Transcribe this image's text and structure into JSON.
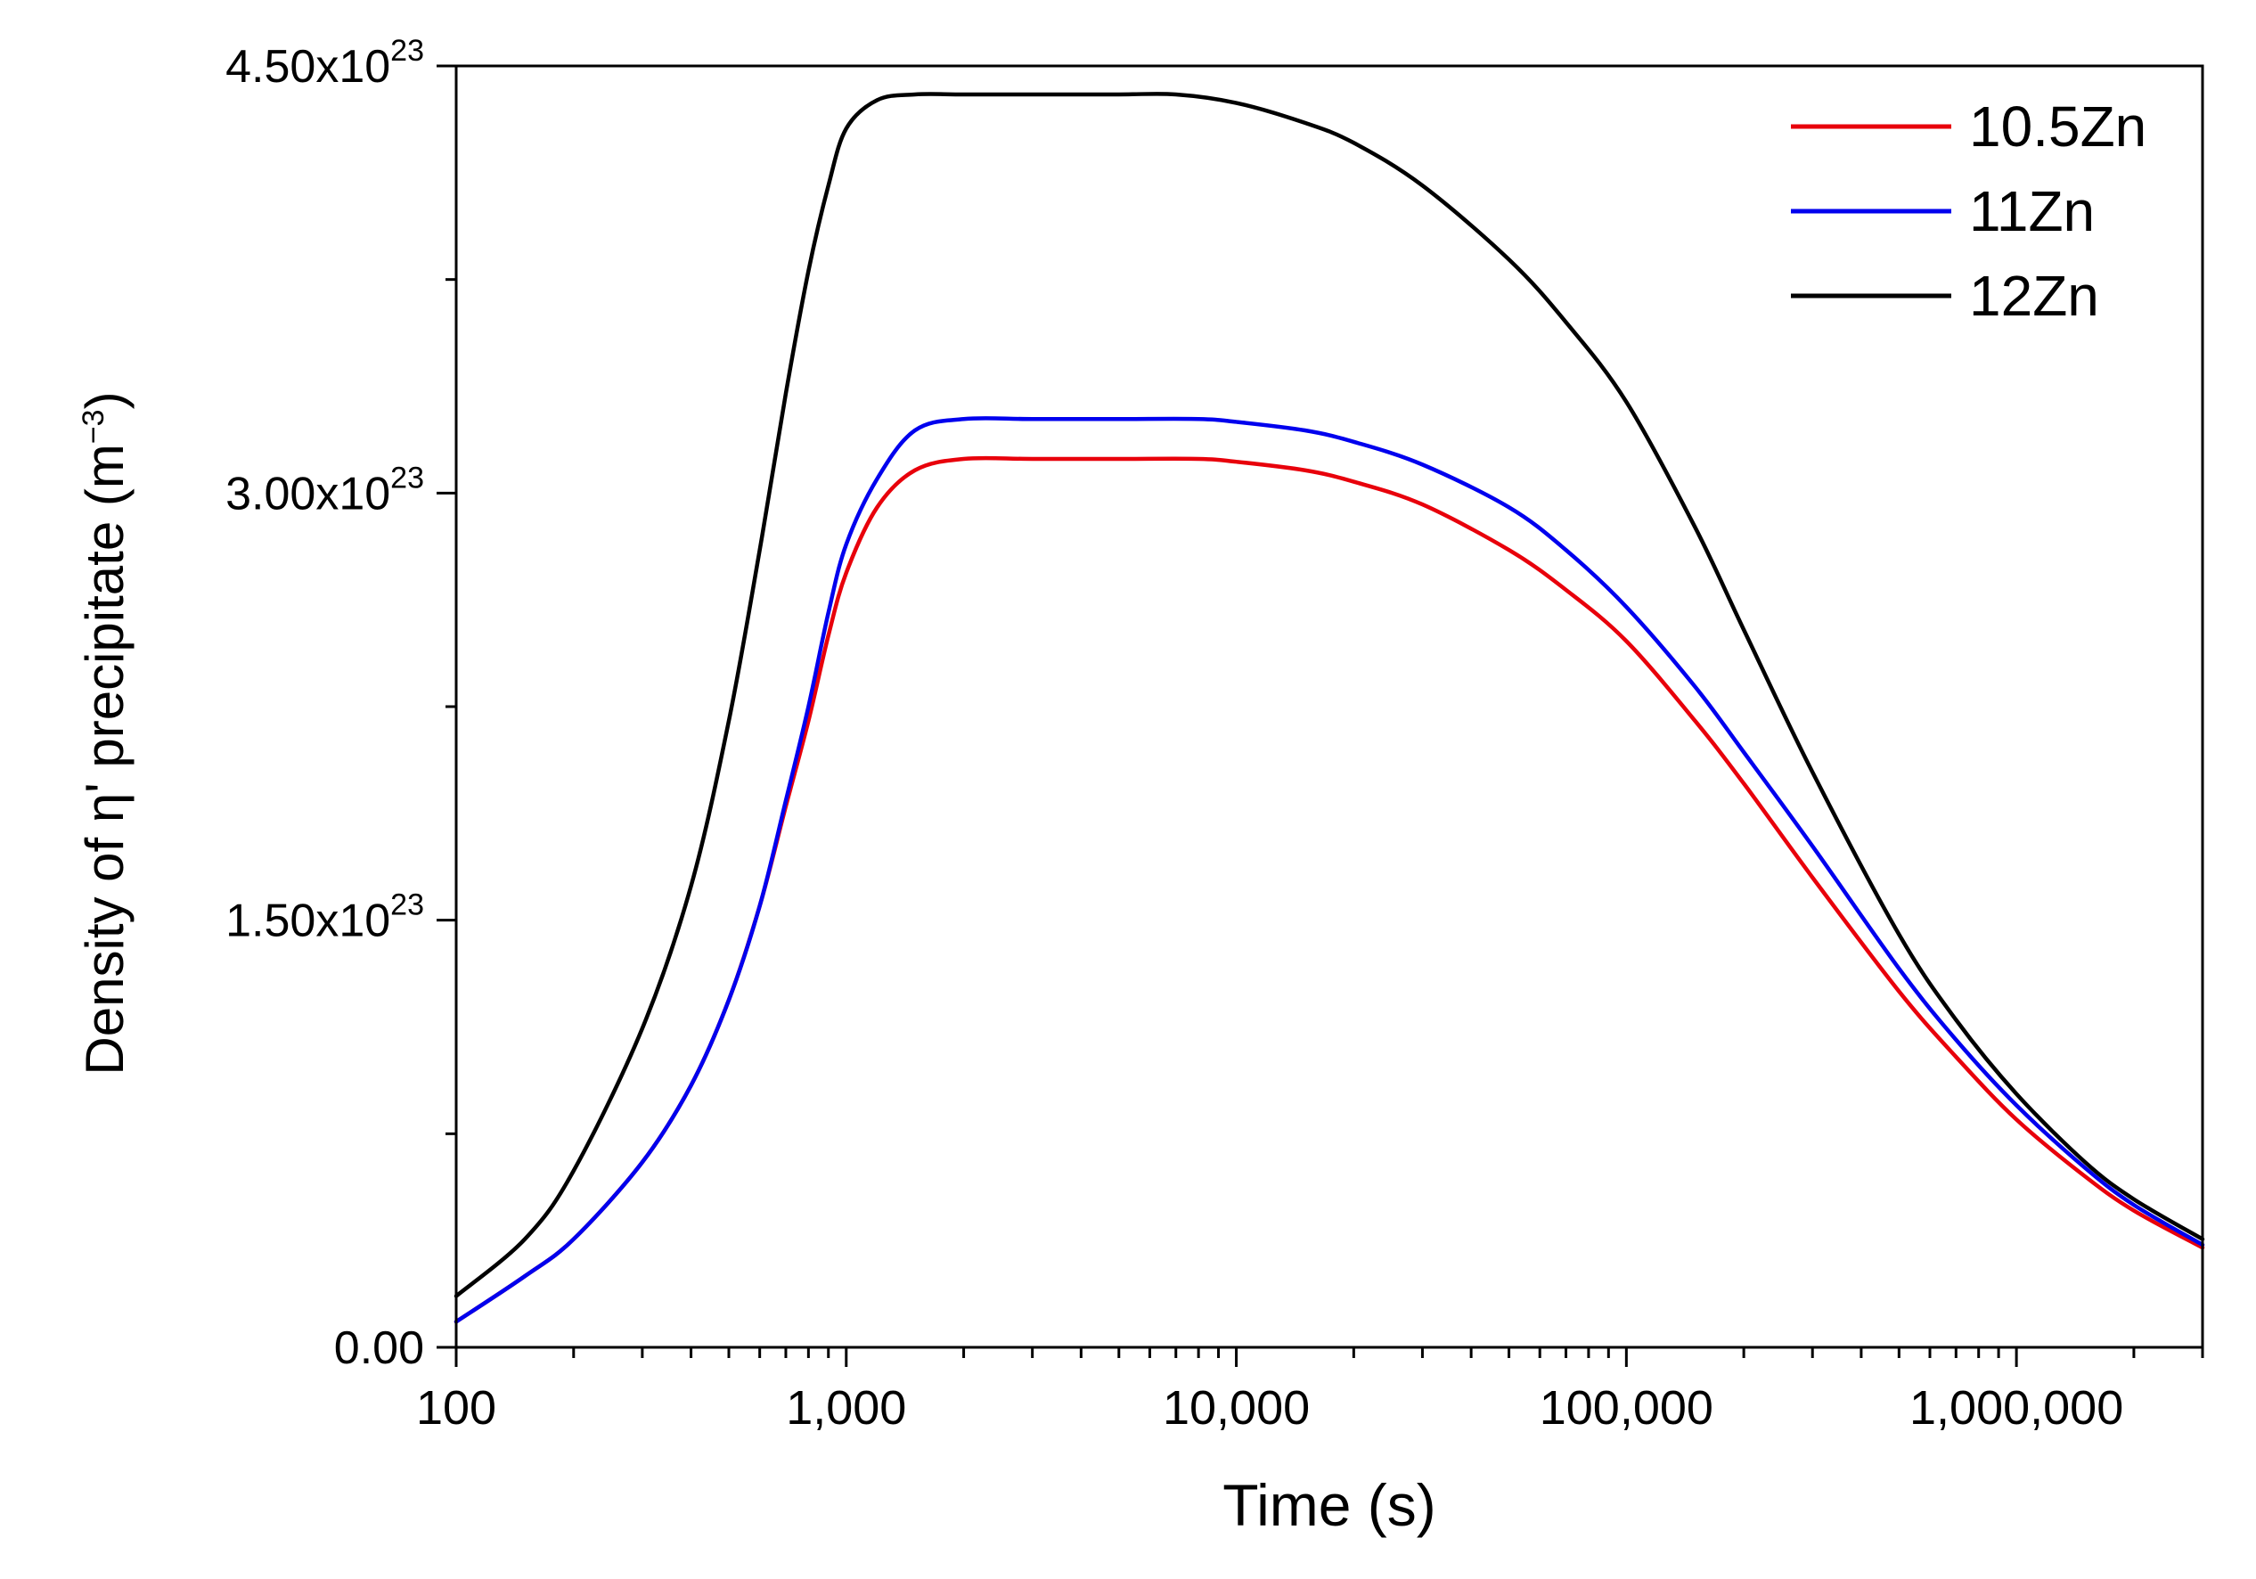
{
  "chart_data": {
    "type": "line",
    "xscale": "log",
    "xlim": [
      100,
      3000000
    ],
    "ylim": [
      0,
      4.5e+23
    ],
    "xlabel": "Time (s)",
    "ylabel": {
      "prefix": "Density of η' precipitate (m",
      "sup": "−3",
      "suffix": ")"
    },
    "x_ticks": [
      {
        "value": 100,
        "label": "100"
      },
      {
        "value": 1000,
        "label": "1,000"
      },
      {
        "value": 10000,
        "label": "10,000"
      },
      {
        "value": 100000,
        "label": "100,000"
      },
      {
        "value": 1000000,
        "label": "1,000,000"
      }
    ],
    "y_ticks": [
      {
        "value": 0,
        "label": "0.00",
        "exp": ""
      },
      {
        "value": 1.5e+23,
        "label": "1.50x10",
        "exp": "23"
      },
      {
        "value": 3e+23,
        "label": "3.00x10",
        "exp": "23"
      },
      {
        "value": 4.5e+23,
        "label": "4.50x10",
        "exp": "23"
      }
    ],
    "y_minor_ticks": [
      7.5e+22,
      2.25e+23,
      3.75e+23
    ],
    "legend_position": "top-right",
    "series": [
      {
        "name": "10.5Zn",
        "color": "#e8000b",
        "x": [
          100,
          150,
          200,
          300,
          400,
          500,
          600,
          700,
          800,
          900,
          1000,
          1200,
          1500,
          2000,
          3000,
          5000,
          8000,
          10000,
          15000,
          20000,
          30000,
          50000,
          70000,
          100000,
          150000,
          200000,
          300000,
          500000,
          700000,
          1000000,
          1500000,
          2000000,
          3000000
        ],
        "values": [
          9e+21,
          2.5e+22,
          3.8e+22,
          6.5e+22,
          9.2e+22,
          1.22e+23,
          1.55e+23,
          1.9e+23,
          2.2e+23,
          2.5e+23,
          2.72e+23,
          2.95e+23,
          3.08e+23,
          3.12e+23,
          3.12e+23,
          3.12e+23,
          3.12e+23,
          3.11e+23,
          3.08e+23,
          3.04e+23,
          2.96e+23,
          2.8e+23,
          2.66e+23,
          2.48e+23,
          2.2e+23,
          1.98e+23,
          1.65e+23,
          1.25e+23,
          1.02e+23,
          8e+22,
          6e+22,
          4.8e+22,
          3.5e+22
        ]
      },
      {
        "name": "11Zn",
        "color": "#0000ee",
        "x": [
          100,
          150,
          200,
          300,
          400,
          500,
          600,
          700,
          800,
          900,
          1000,
          1200,
          1500,
          2000,
          3000,
          5000,
          8000,
          10000,
          15000,
          20000,
          30000,
          50000,
          70000,
          100000,
          150000,
          200000,
          300000,
          500000,
          700000,
          1000000,
          1500000,
          2000000,
          3000000
        ],
        "values": [
          9e+21,
          2.5e+22,
          3.8e+22,
          6.5e+22,
          9.2e+22,
          1.22e+23,
          1.55e+23,
          1.92e+23,
          2.25e+23,
          2.58e+23,
          2.82e+23,
          3.05e+23,
          3.22e+23,
          3.26e+23,
          3.26e+23,
          3.26e+23,
          3.26e+23,
          3.25e+23,
          3.22e+23,
          3.18e+23,
          3.1e+23,
          2.95e+23,
          2.8e+23,
          2.6e+23,
          2.32e+23,
          2.09e+23,
          1.76e+23,
          1.33e+23,
          1.08e+23,
          8.5e+22,
          6.3e+22,
          5e+22,
          3.6e+22
        ]
      },
      {
        "name": "12Zn",
        "color": "#000000",
        "x": [
          100,
          150,
          200,
          300,
          400,
          500,
          600,
          700,
          800,
          900,
          1000,
          1200,
          1500,
          2000,
          3000,
          5000,
          7000,
          10000,
          15000,
          20000,
          30000,
          50000,
          70000,
          100000,
          150000,
          200000,
          300000,
          500000,
          700000,
          1000000,
          1500000,
          2000000,
          3000000
        ],
        "values": [
          1.8e+22,
          3.8e+22,
          6.2e+22,
          1.12e+23,
          1.62e+23,
          2.2e+23,
          2.8e+23,
          3.35e+23,
          3.78e+23,
          4.08e+23,
          4.28e+23,
          4.38e+23,
          4.4e+23,
          4.4e+23,
          4.4e+23,
          4.4e+23,
          4.4e+23,
          4.37e+23,
          4.3e+23,
          4.23e+23,
          4.08e+23,
          3.82e+23,
          3.6e+23,
          3.32e+23,
          2.88e+23,
          2.52e+23,
          2.02e+23,
          1.45e+23,
          1.15e+23,
          8.9e+22,
          6.5e+22,
          5.2e+22,
          3.8e+22
        ]
      }
    ]
  }
}
